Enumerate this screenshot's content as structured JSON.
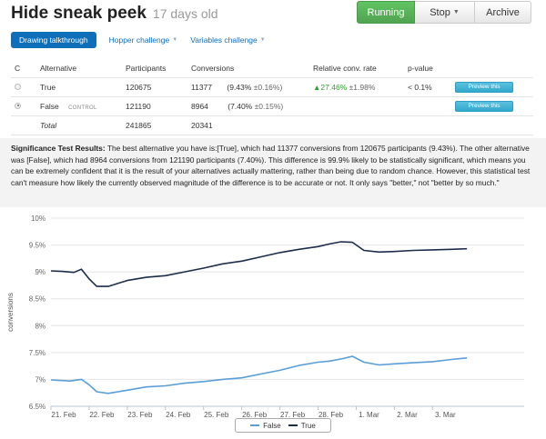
{
  "header": {
    "title": "Hide sneak peek",
    "age": "17 days old"
  },
  "actions": {
    "running_label": "Running",
    "stop_label": "Stop",
    "archive_label": "Archive"
  },
  "tabs": [
    {
      "label": "Drawing talkthrough",
      "active": true
    },
    {
      "label": "Hopper challenge",
      "active": false
    },
    {
      "label": "Variables challenge",
      "active": false
    }
  ],
  "table": {
    "headers": {
      "c": "C",
      "alternative": "Alternative",
      "participants": "Participants",
      "conversions": "Conversions",
      "relative": "Relative conv. rate",
      "pvalue": "p-value"
    },
    "rows": [
      {
        "checked": false,
        "alternative": "True",
        "control_label": "",
        "participants": "120675",
        "conversions": "11377",
        "rate": "(9.43%",
        "rate_err": "±0.16%)",
        "relative": "▲27.46%",
        "relative_err": "±1.98%",
        "pvalue": "< 0.1%",
        "preview_label": "Preview this"
      },
      {
        "checked": true,
        "alternative": "False",
        "control_label": "CONTROL",
        "participants": "121190",
        "conversions": "8964",
        "rate": "(7.40%",
        "rate_err": "±0.15%)",
        "relative": "",
        "relative_err": "",
        "pvalue": "",
        "preview_label": "Preview this"
      }
    ],
    "total": {
      "label": "Total",
      "participants": "241865",
      "conversions": "20341"
    }
  },
  "significance": {
    "heading": "Significance Test Results:",
    "text": "The best alternative you have is:[True], which had 11377 conversions from 120675 participants (9.43%). The other alternative was [False], which had 8964 conversions from 121190 participants (7.40%). This difference is 99.9% likely to be statistically significant, which means you can be extremely confident that it is the result of your alternatives actually mattering, rather than being due to random chance. However, this statistical test can't measure how likely the currently observed magnitude of the difference is to be accurate or not. It only says \"better,\" not \"better by so much.\""
  },
  "colors": {
    "true_series": "#1c2d4a",
    "false_series": "#5a9ed6",
    "accent": "#0e6eb8",
    "running": "#51a351"
  },
  "chart_data": {
    "type": "line",
    "xlabel": "",
    "ylabel": "conversions",
    "ylim": [
      6.5,
      10
    ],
    "yticks": [
      "10%",
      "9.5%",
      "9%",
      "8.5%",
      "8%",
      "7.5%",
      "7%",
      "6.5%"
    ],
    "ytick_values": [
      10,
      9.5,
      9,
      8.5,
      8,
      7.5,
      7,
      6.5
    ],
    "xlim": [
      0,
      12.4
    ],
    "xticks": [
      "21. Feb",
      "22. Feb",
      "23. Feb",
      "24. Feb",
      "25. Feb",
      "26. Feb",
      "27. Feb",
      "28. Feb",
      "1. Mar",
      "2. Mar",
      "3. Mar"
    ],
    "xtick_values": [
      0,
      1,
      2,
      3,
      4,
      5,
      6,
      7,
      8,
      9,
      10
    ],
    "grid": true,
    "legend": "bottom-center",
    "series": [
      {
        "name": "False",
        "color": "#5a9ed6",
        "x": [
          0,
          0.5,
          0.8,
          1.0,
          1.2,
          1.5,
          2.0,
          2.5,
          3.0,
          3.5,
          4.0,
          4.5,
          5.0,
          5.5,
          6.0,
          6.5,
          7.0,
          7.3,
          7.6,
          7.9,
          8.2,
          8.6,
          9.0,
          9.5,
          10.0,
          10.5,
          10.9
        ],
        "y": [
          6.99,
          6.97,
          7.0,
          6.9,
          6.77,
          6.74,
          6.8,
          6.86,
          6.88,
          6.93,
          6.96,
          7.0,
          7.03,
          7.1,
          7.17,
          7.26,
          7.32,
          7.34,
          7.38,
          7.43,
          7.32,
          7.27,
          7.29,
          7.31,
          7.33,
          7.37,
          7.4
        ]
      },
      {
        "name": "True",
        "color": "#1c2d4a",
        "x": [
          0,
          0.3,
          0.6,
          0.8,
          1.0,
          1.2,
          1.5,
          2.0,
          2.5,
          3.0,
          3.5,
          4.0,
          4.5,
          5.0,
          5.5,
          6.0,
          6.5,
          7.0,
          7.3,
          7.6,
          7.9,
          8.2,
          8.6,
          9.0,
          9.5,
          10.0,
          10.5,
          10.9
        ],
        "y": [
          9.02,
          9.01,
          8.99,
          9.05,
          8.87,
          8.73,
          8.73,
          8.84,
          8.9,
          8.93,
          9.0,
          9.07,
          9.15,
          9.2,
          9.28,
          9.36,
          9.42,
          9.47,
          9.52,
          9.56,
          9.55,
          9.4,
          9.37,
          9.38,
          9.4,
          9.41,
          9.42,
          9.43
        ]
      }
    ]
  }
}
